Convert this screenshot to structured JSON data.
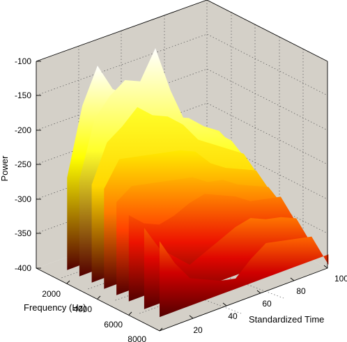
{
  "chart_data": {
    "type": "surface-3d",
    "title": "",
    "xlabel": "Frequency (Hz)",
    "ylabel": "Standardized Time",
    "zlabel": "Power",
    "x_ticks": [
      "2000",
      "4000",
      "6000",
      "8000"
    ],
    "y_ticks": [
      "20",
      "40",
      "60",
      "80",
      "100"
    ],
    "z_ticks": [
      "-100",
      "-150",
      "-200",
      "-250",
      "-300",
      "-350",
      "-400"
    ],
    "xlim": [
      0,
      8000
    ],
    "ylim": [
      0,
      100
    ],
    "zlim": [
      -400,
      -100
    ],
    "colormap": "hot",
    "grid": true,
    "ridges": [
      {
        "frequency": 2000,
        "power": [
          -246,
          -150,
          -100,
          -142,
          -160,
          -170,
          -195,
          -215,
          -225,
          -245,
          -260,
          -295
        ]
      },
      {
        "frequency": 2800,
        "power": [
          -240,
          -160,
          -135,
          -120,
          -130,
          -90,
          -160,
          -215,
          -230,
          -245,
          -265,
          -305
        ]
      },
      {
        "frequency": 3600,
        "power": [
          -238,
          -185,
          -170,
          -150,
          -170,
          -180,
          -200,
          -230,
          -245,
          -260,
          -275,
          -320
        ]
      },
      {
        "frequency": 4400,
        "power": [
          -235,
          -200,
          -205,
          -210,
          -215,
          -220,
          -230,
          -255,
          -270,
          -280,
          -290,
          -335
        ]
      },
      {
        "frequency": 5200,
        "power": [
          -245,
          -230,
          -235,
          -240,
          -245,
          -250,
          -265,
          -270,
          -285,
          -295,
          -305,
          -345
        ]
      },
      {
        "frequency": 6000,
        "power": [
          -255,
          -275,
          -285,
          -280,
          -270,
          -265,
          -275,
          -285,
          -300,
          -305,
          -310,
          -360
        ]
      },
      {
        "frequency": 7000,
        "power": [
          -262,
          -300,
          -320,
          -340,
          -330,
          -320,
          -310,
          -305,
          -315,
          -320,
          -330,
          -380
        ]
      },
      {
        "frequency": 8000,
        "power": [
          -270,
          -310,
          -340,
          -350,
          -360,
          -365,
          -345,
          -330,
          -335,
          -340,
          -345,
          -395
        ]
      }
    ],
    "ridge_times": [
      0,
      9,
      18,
      27,
      36,
      45,
      54,
      63,
      72,
      81,
      90,
      100
    ]
  }
}
